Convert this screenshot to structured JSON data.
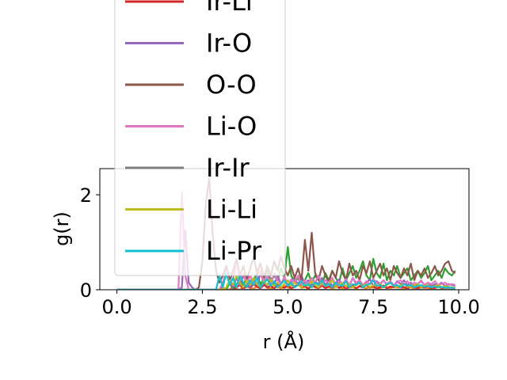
{
  "chart_data": {
    "type": "line",
    "title": "",
    "xlabel": "r (Å)",
    "ylabel": "g(r)",
    "xlim": [
      -0.5,
      10.3
    ],
    "ylim": [
      0,
      2.55
    ],
    "xticks": [
      0.0,
      2.5,
      5.0,
      7.5,
      10.0
    ],
    "xtick_labels": [
      "0.0",
      "2.5",
      "5.0",
      "7.5",
      "10.0"
    ],
    "yticks": [
      0,
      2
    ],
    "ytick_labels": [
      "0",
      "2"
    ],
    "grid": false,
    "legend_position": "upper-center",
    "x": [
      0.0,
      0.5,
      1.0,
      1.5,
      1.8,
      1.9,
      2.0,
      2.1,
      2.2,
      2.3,
      2.4,
      2.5,
      2.6,
      2.7,
      2.8,
      2.9,
      3.0,
      3.1,
      3.2,
      3.3,
      3.4,
      3.5,
      3.6,
      3.7,
      3.8,
      3.9,
      4.0,
      4.1,
      4.2,
      4.3,
      4.4,
      4.5,
      4.6,
      4.7,
      4.8,
      4.9,
      5.0,
      5.1,
      5.2,
      5.3,
      5.4,
      5.5,
      5.6,
      5.7,
      5.8,
      5.9,
      6.0,
      6.1,
      6.2,
      6.3,
      6.4,
      6.5,
      6.6,
      6.7,
      6.8,
      6.9,
      7.0,
      7.1,
      7.2,
      7.3,
      7.4,
      7.5,
      7.6,
      7.7,
      7.8,
      7.9,
      8.0,
      8.1,
      8.2,
      8.3,
      8.4,
      8.5,
      8.6,
      8.7,
      8.8,
      8.9,
      9.0,
      9.1,
      9.2,
      9.3,
      9.4,
      9.5,
      9.6,
      9.7,
      9.8,
      9.9
    ],
    "series": [
      {
        "name": "",
        "color": "#ff7f0e",
        "values": [
          0,
          0,
          0,
          0,
          0,
          0,
          0,
          0,
          0,
          0,
          0,
          0,
          0,
          0,
          0,
          0,
          0,
          0.05,
          0,
          0,
          0.08,
          0.02,
          0,
          0.06,
          0.1,
          0.04,
          0.02,
          0.08,
          0.05,
          0.12,
          0.04,
          0.02,
          0.1,
          0.06,
          0.03,
          0.09,
          0.05,
          0.02,
          0.07,
          0.11,
          0.04,
          0.06,
          0.02,
          0.08,
          0.05,
          0.03,
          0.09,
          0.04,
          0.06,
          0.02,
          0.07,
          0.05,
          0.03,
          0.08,
          0.04,
          0.06,
          0.02,
          0.09,
          0.05,
          0.03,
          0.07,
          0.04,
          0.06,
          0.02,
          0.08,
          0.05,
          0.03,
          0.07,
          0.04,
          0.06,
          0.02,
          0.08,
          0.05,
          0.03,
          0.06,
          0.04,
          0.07,
          0.02,
          0.05,
          0.03,
          0.06,
          0.04,
          0.02,
          0.05,
          0.03,
          0.04
        ]
      },
      {
        "name": "",
        "color": "#2ca02c",
        "values": [
          0,
          0,
          0,
          0,
          0,
          0,
          0,
          0,
          0,
          0,
          0,
          0,
          0,
          0,
          0,
          0,
          0,
          0,
          0,
          0.15,
          0,
          0.1,
          0.25,
          0.05,
          0.3,
          0.1,
          0.2,
          0.35,
          0.1,
          0.25,
          0.4,
          0.15,
          0.3,
          0.2,
          0.45,
          0.25,
          0.9,
          0.3,
          0.15,
          0.25,
          0.1,
          0.2,
          0.35,
          0.15,
          0.3,
          0.2,
          0.1,
          0.35,
          0.2,
          0.4,
          0.25,
          0.15,
          0.45,
          0.2,
          0.35,
          0.5,
          0.25,
          0.4,
          0.6,
          0.3,
          0.2,
          0.65,
          0.35,
          0.25,
          0.55,
          0.2,
          0.4,
          0.3,
          0.5,
          0.25,
          0.35,
          0.45,
          0.2,
          0.3,
          0.4,
          0.25,
          0.35,
          0.5,
          0.2,
          0.3,
          0.4,
          0.25,
          0.45,
          0.35,
          0.3,
          0.4
        ]
      },
      {
        "name": "Ir-Li",
        "color": "#d62728",
        "values": [
          0,
          0,
          0,
          0,
          0,
          0,
          0,
          0,
          0,
          0,
          0,
          0,
          0,
          0,
          0,
          0,
          0,
          0,
          0,
          0,
          0,
          0.05,
          0.1,
          0.02,
          0.08,
          0.04,
          0.12,
          0.06,
          0.03,
          0.1,
          0.05,
          0.08,
          0.02,
          0.11,
          0.06,
          0.04,
          0.09,
          0.03,
          0.07,
          0.12,
          0.05,
          0.08,
          0.02,
          0.1,
          0.06,
          0.04,
          0.09,
          0.03,
          0.07,
          0.05,
          0.1,
          0.04,
          0.08,
          0.02,
          0.06,
          0.09,
          0.03,
          0.07,
          0.05,
          0.1,
          0.04,
          0.08,
          0.02,
          0.06,
          0.09,
          0.03,
          0.07,
          0.05,
          0.08,
          0.04,
          0.06,
          0.02,
          0.07,
          0.05,
          0.03,
          0.06,
          0.04,
          0.08,
          0.02,
          0.05,
          0.07,
          0.03,
          0.06,
          0.04,
          0.05,
          0.03
        ]
      },
      {
        "name": "Ir-O",
        "color": "#9467bd",
        "values": [
          0,
          0,
          0,
          0,
          0,
          0.05,
          1.25,
          0.15,
          0.05,
          0,
          0,
          0,
          0,
          0,
          0,
          0,
          0,
          0.1,
          0.35,
          0.15,
          0.05,
          0.25,
          0.1,
          0.3,
          0.15,
          0.05,
          0.2,
          0.1,
          0.35,
          0.15,
          0.08,
          0.25,
          0.1,
          0.3,
          0.12,
          0.2,
          0.08,
          0.15,
          0.25,
          0.1,
          0.3,
          0.12,
          0.2,
          0.08,
          0.18,
          0.12,
          0.25,
          0.1,
          0.2,
          0.08,
          0.15,
          0.22,
          0.1,
          0.18,
          0.08,
          0.25,
          0.12,
          0.2,
          0.1,
          0.15,
          0.22,
          0.08,
          0.18,
          0.12,
          0.2,
          0.1,
          0.15,
          0.08,
          0.18,
          0.12,
          0.2,
          0.1,
          0.15,
          0.08,
          0.12,
          0.18,
          0.1,
          0.15,
          0.08,
          0.12,
          0.1,
          0.15,
          0.08,
          0.12,
          0.1,
          0.08
        ]
      },
      {
        "name": "O-O",
        "color": "#8c564b",
        "values": [
          0,
          0,
          0,
          0,
          0,
          0,
          0,
          0,
          0,
          0,
          0.05,
          0.6,
          1.8,
          2.35,
          1.2,
          0.4,
          0.15,
          0.3,
          0.5,
          0.2,
          0.4,
          0.65,
          0.3,
          0.5,
          0.2,
          0.45,
          0.7,
          0.35,
          0.55,
          0.25,
          0.5,
          0.3,
          0.6,
          0.4,
          0.7,
          0.45,
          0.3,
          0.5,
          0.25,
          0.45,
          0.2,
          1.05,
          0.4,
          1.2,
          0.35,
          0.2,
          0.5,
          0.3,
          0.15,
          0.4,
          0.25,
          0.6,
          0.35,
          0.2,
          0.55,
          0.3,
          0.4,
          0.2,
          0.5,
          0.35,
          0.6,
          0.25,
          0.4,
          0.55,
          0.3,
          0.45,
          0.2,
          0.5,
          0.35,
          0.25,
          0.45,
          0.3,
          0.55,
          0.2,
          0.4,
          0.3,
          0.45,
          0.25,
          0.35,
          0.5,
          0.3,
          0.4,
          0.55,
          0.6,
          0.4,
          0.35
        ]
      },
      {
        "name": "Li-O",
        "color": "#e377c2",
        "values": [
          0,
          0,
          0,
          0,
          0,
          2.05,
          0.3,
          0,
          0,
          0,
          0,
          0,
          0,
          0,
          0,
          0,
          0,
          0.15,
          0.4,
          0.1,
          0.25,
          0.55,
          0.2,
          0.35,
          0.15,
          0.3,
          0.1,
          0.25,
          0.4,
          0.15,
          0.3,
          0.1,
          0.35,
          0.2,
          0.12,
          0.28,
          0.1,
          0.22,
          0.15,
          0.3,
          0.1,
          0.2,
          0.12,
          0.25,
          0.15,
          0.3,
          0.1,
          0.2,
          0.15,
          0.25,
          0.1,
          0.18,
          0.12,
          0.22,
          0.1,
          0.25,
          0.15,
          0.2,
          0.1,
          0.18,
          0.12,
          0.22,
          0.15,
          0.1,
          0.2,
          0.12,
          0.18,
          0.1,
          0.15,
          0.2,
          0.12,
          0.18,
          0.1,
          0.15,
          0.12,
          0.2,
          0.1,
          0.15,
          0.12,
          0.18,
          0.1,
          0.12,
          0.15,
          0.1,
          0.12,
          0.1
        ]
      },
      {
        "name": "Ir-Ir",
        "color": "#7f7f7f",
        "values": [
          0,
          0,
          0,
          0,
          0,
          0,
          0,
          0,
          0,
          0,
          0,
          0,
          0,
          0,
          0,
          0,
          0,
          0,
          0,
          0,
          0,
          0,
          0,
          0,
          0,
          0,
          0,
          0,
          0,
          0,
          0,
          0,
          0,
          0,
          0,
          0,
          0,
          0,
          0,
          0,
          0,
          0,
          0,
          0,
          0,
          0,
          0,
          0,
          0,
          0,
          0,
          0,
          0,
          0,
          0,
          0,
          0,
          0,
          0,
          0,
          0,
          0,
          0,
          0,
          0,
          0,
          0,
          0,
          0,
          0,
          0,
          0,
          0,
          0,
          0,
          0,
          0,
          0,
          0,
          0,
          0,
          0,
          0,
          0,
          0,
          0
        ]
      },
      {
        "name": "Li-Li",
        "color": "#bcbd22",
        "values": [
          0,
          0,
          0,
          0,
          0,
          0,
          0,
          0,
          0,
          0,
          0,
          0,
          0,
          0,
          0,
          0,
          0,
          0,
          0.05,
          0.2,
          0.1,
          0.3,
          0.15,
          0.05,
          0.2,
          0.1,
          0.25,
          0.12,
          0.05,
          0.18,
          0.1,
          0.22,
          0.08,
          0.15,
          0.05,
          0.12,
          0.2,
          0.08,
          0.15,
          0.1,
          0.05,
          0.12,
          0.08,
          0.18,
          0.1,
          0.05,
          0.15,
          0.08,
          0.12,
          0.2,
          0.05,
          0.1,
          0.15,
          0.08,
          0.12,
          0.05,
          0.1,
          0.15,
          0.08,
          0.12,
          0.05,
          0.1,
          0.08,
          0.12,
          0.05,
          0.1,
          0.15,
          0.08,
          0.05,
          0.1,
          0.12,
          0.08,
          0.05,
          0.1,
          0.12,
          0.05,
          0.08,
          0.1,
          0.05,
          0.08,
          0.1,
          0.05,
          0.08,
          0.06,
          0.05,
          0.04
        ]
      },
      {
        "name": "Li-Pr",
        "color": "#17becf",
        "values": [
          0,
          0,
          0,
          0,
          0,
          0,
          0,
          0,
          0,
          0,
          0,
          0,
          0,
          0,
          0,
          0,
          0.3,
          0.05,
          0.35,
          0.1,
          0.25,
          0.05,
          0.3,
          0.15,
          0.05,
          0.2,
          0.1,
          0.25,
          0.05,
          0.15,
          0.22,
          0.08,
          0.18,
          0.05,
          0.12,
          0.2,
          0.08,
          0.15,
          0.05,
          0.1,
          0.18,
          0.08,
          0.12,
          0.05,
          0.15,
          0.1,
          0.2,
          0.08,
          0.12,
          0.05,
          0.15,
          0.1,
          0.08,
          0.18,
          0.05,
          0.12,
          0.1,
          0.15,
          0.05,
          0.1,
          0.12,
          0.2,
          0.08,
          0.1,
          0.05,
          0.12,
          0.15,
          0.08,
          0.1,
          0.05,
          0.12,
          0.08,
          0.1,
          0.05,
          0.08,
          0.1,
          0.06,
          0.08,
          0.05,
          0.07,
          0.05,
          0.06,
          0.04,
          0.05,
          0.04,
          0.03
        ]
      }
    ]
  }
}
